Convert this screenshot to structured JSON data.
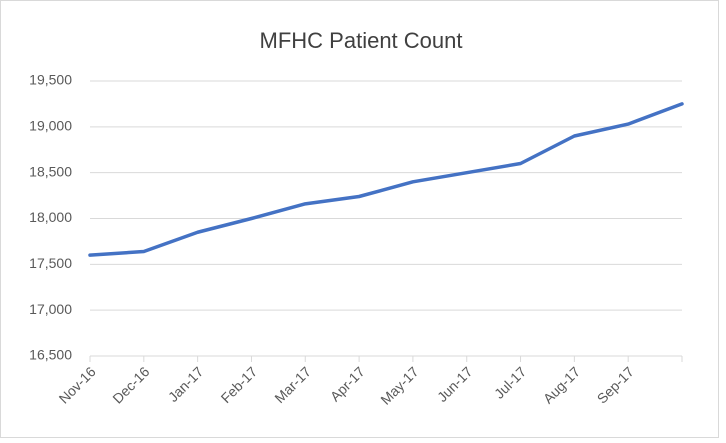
{
  "chart_data": {
    "type": "line",
    "title": "MFHC Patient Count",
    "categories": [
      "Nov-16",
      "Dec-16",
      "Jan-17",
      "Feb-17",
      "Mar-17",
      "Apr-17",
      "May-17",
      "Jun-17",
      "Jul-17",
      "Aug-17",
      "Sep-17",
      null
    ],
    "series": [
      {
        "name": "Patient Count",
        "color": "#4472c4",
        "values": [
          17600,
          17640,
          17850,
          18000,
          18160,
          18240,
          18400,
          18500,
          18600,
          18900,
          19030,
          19250
        ]
      }
    ],
    "ylim": [
      16500,
      19500
    ],
    "yticks": [
      {
        "value": 16500,
        "label": "16,500"
      },
      {
        "value": 17000,
        "label": "17,000"
      },
      {
        "value": 17500,
        "label": "17,500"
      },
      {
        "value": 18000,
        "label": "18,000"
      },
      {
        "value": 18500,
        "label": "18,500"
      },
      {
        "value": 19000,
        "label": "19,000"
      },
      {
        "value": 19500,
        "label": "19,500"
      }
    ],
    "grid": true
  }
}
